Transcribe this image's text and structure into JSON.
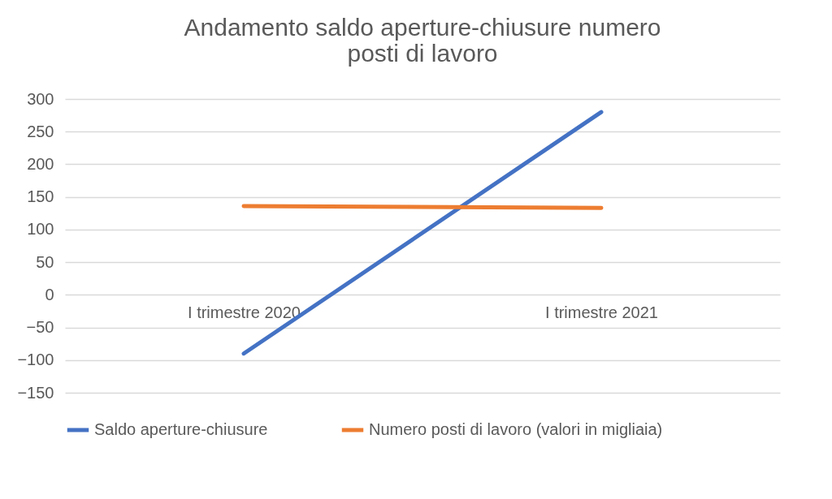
{
  "chart_data": {
    "type": "line",
    "title": "Andamento saldo aperture-chiusure numero posti di lavoro",
    "categories": [
      "I trimestre 2020",
      "I trimestre 2021"
    ],
    "series": [
      {
        "name": "Saldo aperture-chiusure",
        "color": "#4472c4",
        "values": [
          -90,
          280
        ]
      },
      {
        "name": "Numero posti di lavoro (valori in migliaia)",
        "color": "#ed7d31",
        "values": [
          136,
          133
        ]
      }
    ],
    "ylim": [
      -150,
      300
    ],
    "yticks": [
      -150,
      -100,
      -50,
      0,
      50,
      100,
      150,
      200,
      250,
      300
    ],
    "grid": "y",
    "legend": "bottom",
    "marker": "none",
    "line_style": "solid"
  }
}
